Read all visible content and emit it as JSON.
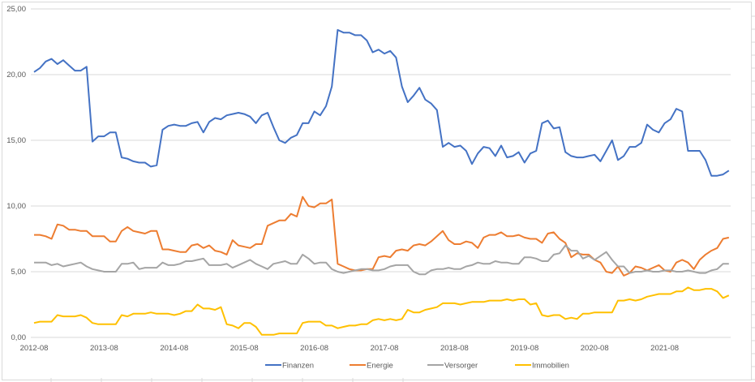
{
  "chart_data": {
    "type": "line",
    "title": "",
    "xlabel": "",
    "ylabel": "",
    "ylim": [
      0,
      25
    ],
    "y_ticks": [
      "0,00",
      "5,00",
      "10,00",
      "15,00",
      "20,00",
      "25,00"
    ],
    "y_tick_values": [
      0,
      5,
      10,
      15,
      20,
      25
    ],
    "x_tick_labels": [
      "2012-08",
      "2013-08",
      "2014-08",
      "2015-08",
      "2016-08",
      "2017-08",
      "2018-08",
      "2019-08",
      "2020-08",
      "2021-08"
    ],
    "x_start": "2012-08",
    "x_frequency": "monthly",
    "grid": true,
    "legend_position": "bottom",
    "series": [
      {
        "name": "Finanzen",
        "color": "#4472C4",
        "values": [
          20.2,
          20.5,
          21.0,
          21.2,
          20.8,
          21.1,
          20.7,
          20.3,
          20.3,
          20.6,
          14.9,
          15.3,
          15.3,
          15.6,
          15.6,
          13.7,
          13.6,
          13.4,
          13.3,
          13.3,
          13.0,
          13.1,
          15.8,
          16.1,
          16.2,
          16.1,
          16.1,
          16.3,
          16.4,
          15.6,
          16.4,
          16.7,
          16.6,
          16.9,
          17.0,
          17.1,
          17.0,
          16.8,
          16.3,
          16.9,
          17.1,
          16.0,
          15.0,
          14.8,
          15.2,
          15.4,
          16.3,
          16.3,
          17.2,
          16.9,
          17.6,
          19.1,
          23.4,
          23.2,
          23.2,
          23.0,
          23.0,
          22.6,
          21.7,
          21.9,
          21.6,
          21.8,
          21.3,
          19.1,
          17.9,
          18.4,
          19.0,
          18.1,
          17.8,
          17.3,
          14.5,
          14.8,
          14.5,
          14.6,
          14.2,
          13.2,
          14.0,
          14.5,
          14.4,
          13.8,
          14.6,
          13.7,
          13.8,
          14.1,
          13.3,
          14.0,
          14.2,
          16.3,
          16.5,
          15.9,
          16.0,
          14.1,
          13.8,
          13.7,
          13.7,
          13.8,
          13.9,
          13.4,
          14.2,
          15.0,
          13.5,
          13.8,
          14.5,
          14.5,
          14.8,
          16.2,
          15.8,
          15.6,
          16.3,
          16.6,
          17.4,
          17.2,
          14.2,
          14.2,
          14.2,
          13.5,
          12.3,
          12.3,
          12.4,
          12.7
        ]
      },
      {
        "name": "Energie",
        "color": "#ED7D31",
        "values": [
          7.8,
          7.8,
          7.7,
          7.5,
          8.6,
          8.5,
          8.2,
          8.2,
          8.1,
          8.1,
          7.7,
          7.7,
          7.7,
          7.3,
          7.3,
          8.1,
          8.4,
          8.1,
          8.0,
          7.9,
          8.1,
          8.1,
          6.7,
          6.7,
          6.6,
          6.5,
          6.5,
          7.0,
          7.1,
          6.8,
          7.0,
          6.6,
          6.5,
          6.3,
          7.4,
          7.0,
          6.9,
          6.8,
          7.1,
          7.1,
          8.5,
          8.7,
          8.9,
          8.9,
          9.4,
          9.2,
          10.7,
          10.0,
          9.9,
          10.2,
          10.2,
          10.5,
          5.6,
          5.4,
          5.2,
          5.1,
          5.1,
          5.2,
          5.2,
          6.1,
          6.2,
          6.1,
          6.6,
          6.7,
          6.6,
          7.0,
          7.1,
          7.0,
          7.3,
          7.7,
          8.1,
          7.4,
          7.1,
          7.1,
          7.3,
          7.2,
          6.8,
          7.6,
          7.8,
          7.8,
          8.0,
          7.7,
          7.7,
          7.8,
          7.6,
          7.5,
          7.5,
          7.2,
          7.9,
          8.0,
          7.5,
          7.2,
          6.1,
          6.4,
          6.3,
          6.3,
          5.9,
          5.7,
          5.0,
          4.9,
          5.4,
          4.7,
          4.9,
          5.4,
          5.3,
          5.1,
          5.3,
          5.5,
          5.1,
          5.0,
          5.7,
          5.9,
          5.7,
          5.2,
          5.9,
          6.3,
          6.6,
          6.8,
          7.5,
          7.6
        ]
      },
      {
        "name": "Versorger",
        "color": "#A5A5A5",
        "values": [
          5.7,
          5.7,
          5.7,
          5.5,
          5.6,
          5.4,
          5.5,
          5.6,
          5.7,
          5.4,
          5.2,
          5.1,
          5.0,
          5.0,
          5.0,
          5.6,
          5.6,
          5.7,
          5.2,
          5.3,
          5.3,
          5.3,
          5.7,
          5.5,
          5.5,
          5.6,
          5.8,
          5.8,
          5.9,
          6.0,
          5.5,
          5.5,
          5.5,
          5.6,
          5.3,
          5.5,
          5.7,
          5.9,
          5.6,
          5.4,
          5.2,
          5.6,
          5.7,
          5.8,
          5.6,
          5.6,
          6.3,
          6.0,
          5.6,
          5.7,
          5.7,
          5.2,
          5.0,
          4.9,
          5.0,
          5.1,
          5.2,
          5.2,
          5.1,
          5.1,
          5.2,
          5.4,
          5.5,
          5.5,
          5.5,
          5.0,
          4.8,
          4.8,
          5.1,
          5.2,
          5.2,
          5.3,
          5.2,
          5.2,
          5.4,
          5.5,
          5.7,
          5.6,
          5.6,
          5.8,
          5.7,
          5.7,
          5.6,
          5.6,
          6.1,
          6.1,
          6.0,
          5.8,
          5.8,
          6.3,
          6.4,
          7.0,
          6.6,
          6.6,
          6.0,
          6.2,
          5.9,
          6.2,
          6.5,
          5.9,
          5.4,
          5.4,
          4.9,
          5.0,
          5.0,
          5.1,
          5.0,
          5.0,
          5.1,
          5.1,
          5.0,
          5.0,
          5.1,
          5.0,
          4.9,
          4.9,
          5.1,
          5.2,
          5.6,
          5.6
        ]
      },
      {
        "name": "Immobilien",
        "color": "#FFC000",
        "values": [
          1.1,
          1.2,
          1.2,
          1.2,
          1.7,
          1.6,
          1.6,
          1.6,
          1.7,
          1.5,
          1.1,
          1.0,
          1.0,
          1.0,
          1.0,
          1.7,
          1.6,
          1.8,
          1.8,
          1.8,
          1.9,
          1.8,
          1.8,
          1.8,
          1.7,
          1.8,
          2.0,
          2.0,
          2.5,
          2.2,
          2.2,
          2.1,
          2.3,
          1.0,
          0.9,
          0.7,
          1.1,
          1.1,
          0.8,
          0.2,
          0.2,
          0.2,
          0.3,
          0.3,
          0.3,
          0.3,
          1.1,
          1.2,
          1.2,
          1.2,
          0.9,
          0.9,
          0.7,
          0.8,
          0.9,
          0.9,
          1.0,
          1.0,
          1.3,
          1.4,
          1.3,
          1.4,
          1.3,
          1.4,
          2.1,
          1.9,
          1.9,
          2.1,
          2.2,
          2.3,
          2.6,
          2.6,
          2.6,
          2.5,
          2.6,
          2.7,
          2.7,
          2.7,
          2.8,
          2.8,
          2.8,
          2.9,
          2.8,
          2.9,
          2.9,
          2.5,
          2.6,
          1.7,
          1.6,
          1.7,
          1.7,
          1.4,
          1.5,
          1.4,
          1.8,
          1.8,
          1.9,
          1.9,
          1.9,
          1.9,
          2.8,
          2.8,
          2.9,
          2.8,
          2.9,
          3.1,
          3.2,
          3.3,
          3.3,
          3.3,
          3.5,
          3.5,
          3.8,
          3.6,
          3.6,
          3.7,
          3.7,
          3.5,
          3.0,
          3.2
        ]
      }
    ]
  }
}
